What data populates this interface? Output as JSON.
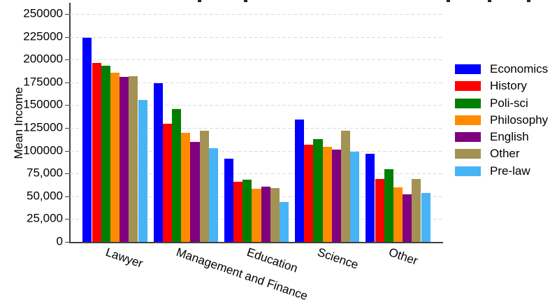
{
  "chart_data": {
    "type": "bar",
    "title_visible": false,
    "cropped_title_marks_x": [
      283,
      349,
      639,
      698,
      754
    ],
    "ylabel": "Mean Income",
    "ylim": [
      0,
      250000
    ],
    "grid": "dashed horizontal",
    "legend_position": "right",
    "categories": [
      "Lawyer",
      "Management and Finance",
      "Education",
      "Science",
      "Other"
    ],
    "y_ticks": [
      {
        "label": "0",
        "value": 0
      },
      {
        "label": "25,000",
        "value": 25000
      },
      {
        "label": "50,000",
        "value": 50000
      },
      {
        "label": "75,000",
        "value": 75000
      },
      {
        "label": "100000",
        "value": 100000
      },
      {
        "label": "125000",
        "value": 125000
      },
      {
        "label": "150000",
        "value": 150000
      },
      {
        "label": "175000",
        "value": 175000
      },
      {
        "label": "200000",
        "value": 200000
      },
      {
        "label": "225000",
        "value": 225000
      },
      {
        "label": "250000",
        "value": 250000
      }
    ],
    "series": [
      {
        "name": "Economics",
        "color": "#0000FF",
        "values": [
          224000,
          174000,
          91000,
          134000,
          97000
        ]
      },
      {
        "name": "History",
        "color": "#FF0000",
        "values": [
          196000,
          130000,
          66000,
          107000,
          69000
        ]
      },
      {
        "name": "Poli-sci",
        "color": "#008000",
        "values": [
          193000,
          146000,
          68000,
          113000,
          80000
        ]
      },
      {
        "name": "Philosophy",
        "color": "#FF8C00",
        "values": [
          186000,
          120000,
          58000,
          104000,
          60000
        ]
      },
      {
        "name": "English",
        "color": "#800080",
        "values": [
          181000,
          110000,
          61000,
          101000,
          52000
        ]
      },
      {
        "name": "Other",
        "color": "#A49254",
        "values": [
          182000,
          122000,
          59000,
          122000,
          69000
        ]
      },
      {
        "name": "Pre-law",
        "color": "#47B4F5",
        "values": [
          156000,
          103000,
          44000,
          99000,
          54000
        ]
      }
    ]
  }
}
